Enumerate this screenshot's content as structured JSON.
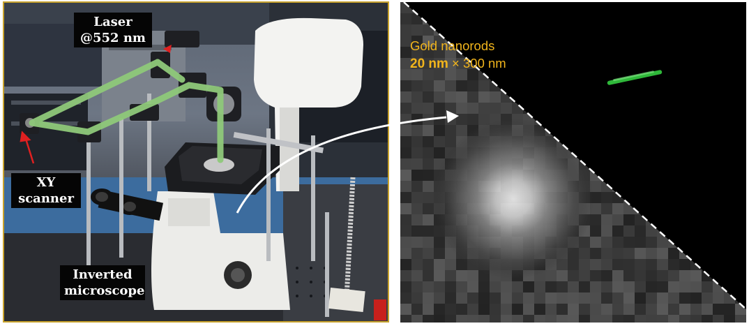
{
  "left_panel": {
    "labels": {
      "laser_line1": "Laser",
      "laser_line2": "@552 nm",
      "xy_line1": "XY",
      "xy_line2": "scanner",
      "microscope_line1": "Inverted",
      "microscope_line2": "microscope"
    },
    "colors": {
      "border": "#c8a22c",
      "beam": "#8fc97a",
      "pointer_arrow": "#e02020"
    }
  },
  "right_panel": {
    "caption_line1": "Gold nanorods",
    "caption_bold": "20 nm",
    "caption_rest": " × 300 nm",
    "colors": {
      "caption": "#f2b51c",
      "nanorod": "#2fb83a",
      "divider": "#ffffff"
    }
  }
}
